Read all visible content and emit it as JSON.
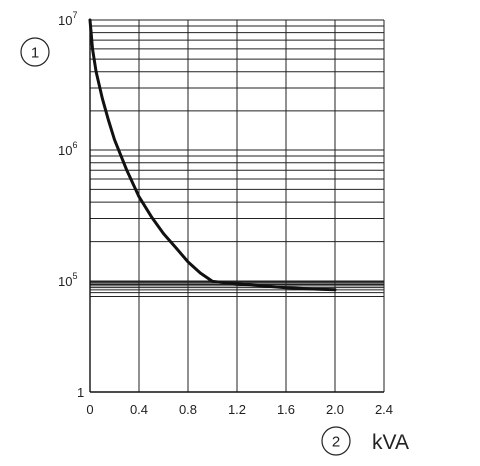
{
  "chart_data": {
    "type": "line",
    "title": "",
    "x_axis": {
      "range": [
        0,
        2.4
      ],
      "ticks": [
        "0",
        "0.4",
        "0.8",
        "1.2",
        "1.6",
        "2.0",
        "2.4"
      ],
      "unit_label": "kVA",
      "marker": "2"
    },
    "y_axis": {
      "scale": "log",
      "range": [
        0,
        7
      ],
      "ticks": [
        {
          "base": "1",
          "exp": ""
        },
        {
          "base": "10",
          "exp": "5"
        },
        {
          "base": "10",
          "exp": "6"
        },
        {
          "base": "10",
          "exp": "7"
        }
      ],
      "marker": "1"
    },
    "grid": true,
    "series": [
      {
        "color": "#111111",
        "x": [
          0,
          0.02,
          0.05,
          0.1,
          0.15,
          0.2,
          0.3,
          0.4,
          0.5,
          0.6,
          0.7,
          0.8,
          0.9,
          1.0,
          1.1,
          1.2,
          1.3,
          1.4,
          1.5,
          1.6,
          1.7,
          1.8,
          1.9,
          2.0
        ],
        "y": [
          10000000,
          6000000,
          4000000,
          2500000,
          1700000,
          1200000,
          700000,
          440000,
          310000,
          230000,
          180000,
          140000,
          115000,
          96000,
          84000,
          74000,
          67000,
          61000,
          55000,
          50000,
          47000,
          44000,
          42000,
          40000
        ]
      }
    ]
  }
}
